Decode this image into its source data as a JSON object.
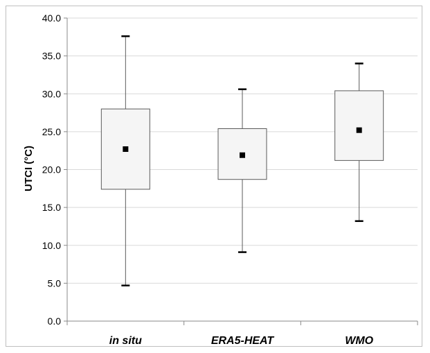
{
  "chart_data": {
    "type": "box",
    "title": "",
    "xlabel": "",
    "ylabel": "UTCI (°C)",
    "ylim": [
      0,
      40
    ],
    "yticks": [
      "0.0",
      "5.0",
      "10.0",
      "15.0",
      "20.0",
      "25.0",
      "30.0",
      "35.0",
      "40.0"
    ],
    "grid": true,
    "legend": "none",
    "categories": [
      "in situ",
      "ERA5-HEAT",
      "WMO"
    ],
    "boxes": [
      {
        "min": 4.7,
        "q1": 17.4,
        "mean": 22.7,
        "q3": 28.0,
        "max": 37.6
      },
      {
        "min": 9.1,
        "q1": 18.7,
        "mean": 21.9,
        "q3": 25.4,
        "max": 30.6
      },
      {
        "min": 13.2,
        "q1": 21.2,
        "mean": 25.2,
        "q3": 30.4,
        "max": 34.0
      }
    ],
    "colors": {
      "box_fill": "#f5f5f5",
      "box_stroke": "#5a5a5a",
      "marker": "#000000",
      "grid": "#d9d9d9"
    }
  }
}
